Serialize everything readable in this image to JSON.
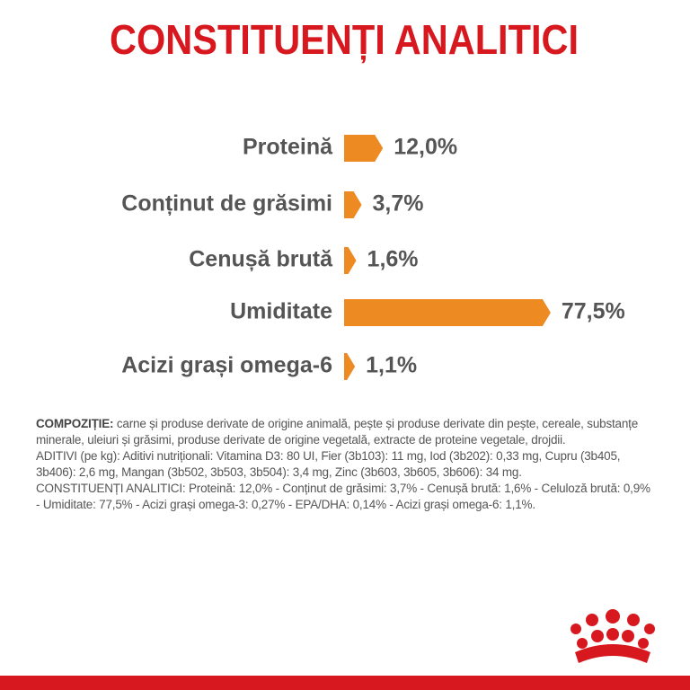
{
  "chart_data": {
    "type": "bar",
    "title": "CONSTITUENȚI ANALITICI",
    "categories": [
      "Proteină",
      "Conținut de grăsimi",
      "Cenușă brută",
      "Umiditate",
      "Acizi grași omega-6"
    ],
    "values": [
      12.0,
      3.7,
      1.6,
      77.5,
      1.1
    ],
    "value_labels": [
      "12,0%",
      "3,7%",
      "1,6%",
      "77,5%",
      "1,1%"
    ],
    "color": "#ee8a22",
    "orientation": "horizontal"
  },
  "composition": {
    "label": "COMPOZIȚIE:",
    "text": "carne și produse derivate de origine animală, pește și produse derivate din pește, cereale, substanțe minerale, uleiuri și grăsimi, produse derivate de origine vegetală, extracte de proteine vegetale, drojdii.",
    "additives": "ADITIVI (pe kg): Aditivi nutriționali: Vitamina D3: 80 UI, Fier (3b103): 11 mg, Iod (3b202): 0,33 mg, Cupru (3b405, 3b406): 2,6 mg, Mangan (3b502, 3b503, 3b504): 3,4 mg, Zinc (3b603, 3b605, 3b606): 34 mg.",
    "constituents": "CONSTITUENȚI ANALITICI: Proteină: 12,0% - Conținut de grăsimi: 3,7% - Cenușă brută: 1,6% - Celuloză brută: 0,9% - Umiditate: 77,5% - Acizi grași omega-3: 0,27% - EPA/DHA: 0,14% - Acizi grași omega-6: 1,1%."
  }
}
